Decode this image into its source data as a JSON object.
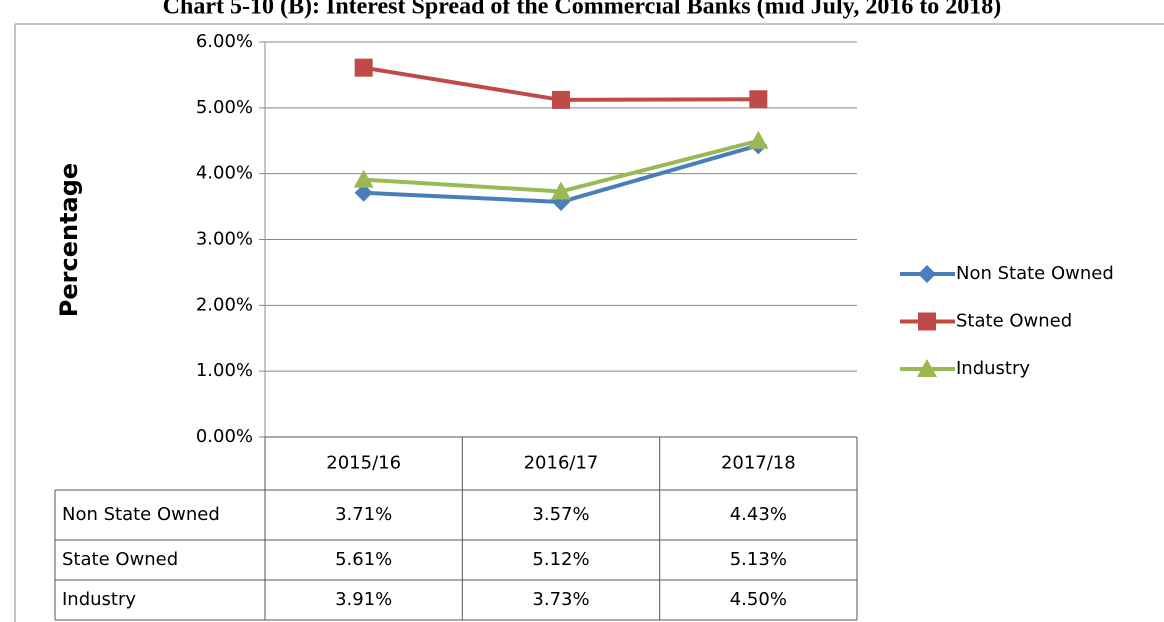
{
  "chart_data": {
    "type": "line",
    "title": "Chart 5-10 (B): Interest Spread of the Commercial Banks (mid July, 2016 to 2018)",
    "y_label": "Percentage",
    "categories": [
      "2015/16",
      "2016/17",
      "2017/18"
    ],
    "series": [
      {
        "name": "Non State Owned",
        "color": "#4a7ebb",
        "marker": "diamond",
        "values": [
          3.71,
          3.57,
          4.43
        ],
        "value_labels": [
          "3.71%",
          "3.57%",
          "4.43%"
        ]
      },
      {
        "name": "State Owned",
        "color": "#be4b48",
        "marker": "square",
        "values": [
          5.61,
          5.12,
          5.13
        ],
        "value_labels": [
          "5.61%",
          "5.12%",
          "5.13%"
        ]
      },
      {
        "name": "Industry",
        "color": "#98b954",
        "marker": "triangle",
        "values": [
          3.91,
          3.73,
          4.5
        ],
        "value_labels": [
          "3.91%",
          "3.73%",
          "4.50%"
        ]
      }
    ],
    "ylim": [
      0,
      6
    ],
    "yticks": [
      {
        "value": 0,
        "label": "0.00%"
      },
      {
        "value": 1,
        "label": "1.00%"
      },
      {
        "value": 2,
        "label": "2.00%"
      },
      {
        "value": 3,
        "label": "3.00%"
      },
      {
        "value": 4,
        "label": "4.00%"
      },
      {
        "value": 5,
        "label": "5.00%"
      },
      {
        "value": 6,
        "label": "6.00%"
      }
    ],
    "grid": true,
    "legend": "right",
    "data_table": true
  }
}
